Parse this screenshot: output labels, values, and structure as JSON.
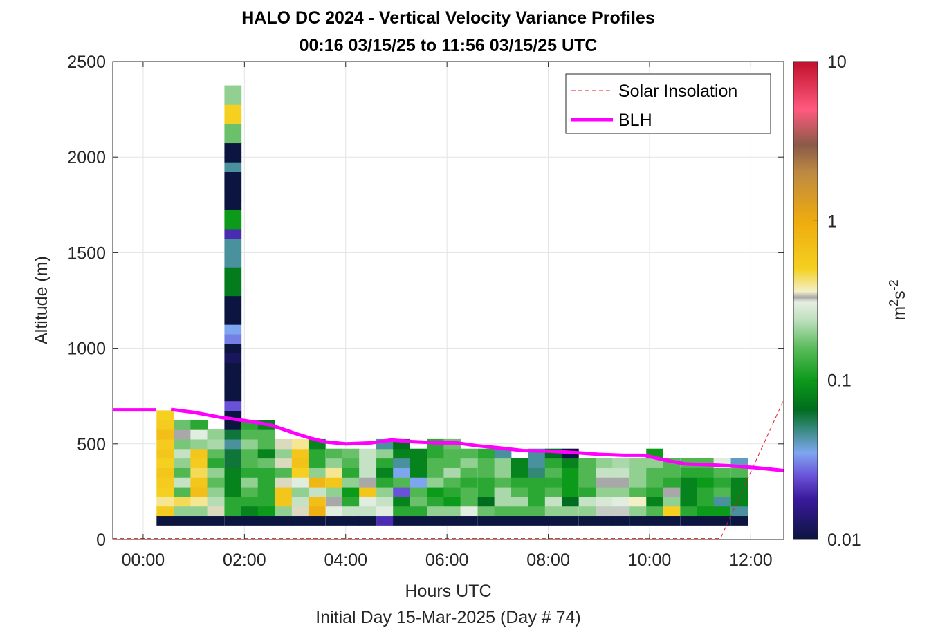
{
  "chart_data": {
    "type": "heatmap",
    "title": "HALO DC 2024 - Vertical Velocity Variance Profiles",
    "subtitle": "00:16 03/15/25 to 11:56 03/15/25  UTC",
    "xlabel": "Hours UTC",
    "x_sublabel": "Initial Day 15-Mar-2025 (Day # 74)",
    "ylabel": "Altitude (m)",
    "xlim": [
      -0.6,
      12.65
    ],
    "ylim": [
      0,
      2500
    ],
    "x_ticks": [
      0,
      2,
      4,
      6,
      8,
      10,
      12
    ],
    "x_tick_labels": [
      "00:00",
      "02:00",
      "04:00",
      "06:00",
      "08:00",
      "10:00",
      "12:00"
    ],
    "y_ticks": [
      0,
      500,
      1000,
      1500,
      2000,
      2500
    ],
    "y_tick_labels": [
      "0",
      "500",
      "1000",
      "1500",
      "2000",
      "2500"
    ],
    "grid": true,
    "legend_position": "top-right",
    "colorbar": {
      "label_base": "m",
      "label_exp1": "2",
      "label_mid": "s",
      "label_exp2": "-2",
      "scale": "log",
      "range": [
        0.01,
        10
      ],
      "tick_values": [
        0.01,
        0.1,
        1,
        10
      ],
      "tick_labels": [
        "0.01",
        "0.1",
        "1",
        "10"
      ],
      "stops": [
        {
          "v": 0.01,
          "c": "#0c1440"
        },
        {
          "v": 0.018,
          "c": "#3a1a9c"
        },
        {
          "v": 0.025,
          "c": "#6a52d8"
        },
        {
          "v": 0.035,
          "c": "#7ea6f0"
        },
        {
          "v": 0.048,
          "c": "#3c8c86"
        },
        {
          "v": 0.065,
          "c": "#006d1e"
        },
        {
          "v": 0.1,
          "c": "#0c9a1a"
        },
        {
          "v": 0.16,
          "c": "#5cbc5c"
        },
        {
          "v": 0.24,
          "c": "#bfe0bf"
        },
        {
          "v": 0.31,
          "c": "#e6efe2"
        },
        {
          "v": 0.33,
          "c": "#a8a8a8"
        },
        {
          "v": 0.36,
          "c": "#f3f0c8"
        },
        {
          "v": 0.5,
          "c": "#f5d020"
        },
        {
          "v": 1.0,
          "c": "#eeab0e"
        },
        {
          "v": 2.0,
          "c": "#be8a42"
        },
        {
          "v": 3.0,
          "c": "#8a5a48"
        },
        {
          "v": 5.0,
          "c": "#ff5a7e"
        },
        {
          "v": 10.0,
          "c": "#c0102a"
        }
      ]
    },
    "series": [
      {
        "name": "Solar Insolation",
        "style": "dashed",
        "color": "#e41a1c",
        "x": [
          -0.6,
          11.4,
          12.65
        ],
        "y": [
          5,
          5,
          730
        ]
      },
      {
        "name": "BLH",
        "style": "solid",
        "color": "#ff00ff",
        "x": [
          -0.6,
          0.25,
          0.55,
          1.0,
          1.5,
          2.0,
          2.5,
          3.0,
          3.3,
          3.6,
          4.0,
          4.5,
          4.9,
          5.3,
          5.8,
          6.2,
          6.6,
          7.0,
          7.5,
          8.0,
          8.5,
          9.0,
          9.5,
          9.9,
          10.3,
          10.7,
          11.2,
          11.6,
          12.1,
          12.65
        ],
        "y": [
          678,
          678,
          680,
          665,
          640,
          622,
          600,
          555,
          530,
          510,
          500,
          505,
          520,
          512,
          505,
          505,
          490,
          480,
          465,
          462,
          455,
          445,
          440,
          440,
          415,
          395,
          390,
          385,
          375,
          360
        ]
      },
      {
        "name": "Vertical velocity variance",
        "cell_width_h": 0.33,
        "cell_height_m": 50,
        "columns": [
          {
            "x": 0.43,
            "y0": 100,
            "v": [
              0.01,
              0.55,
              0.4,
              0.5,
              0.55,
              0.6,
              0.5,
              0.6,
              0.55,
              0.7,
              0.55,
              0.5
            ]
          },
          {
            "x": 0.77,
            "y0": 100,
            "v": [
              0.01,
              0.2,
              0.45,
              0.15,
              0.25,
              0.15,
              0.2,
              0.25,
              0.18,
              0.33,
              0.17
            ]
          },
          {
            "x": 1.1,
            "y0": 100,
            "v": [
              0.01,
              0.2,
              0.4,
              0.7,
              0.6,
              0.45,
              0.55,
              0.6,
              0.2,
              0.3,
              0.12
            ]
          },
          {
            "x": 1.43,
            "y0": 100,
            "v": [
              0.01,
              0.35,
              0.23,
              0.2,
              0.16,
              0.2,
              0.12,
              0.16,
              0.22,
              0.2
            ]
          },
          {
            "x": 1.77,
            "y0": 100,
            "v": [
              0.01,
              0.12,
              0.12,
              0.08,
              0.08,
              0.08,
              0.06,
              0.06,
              0.045,
              0.06,
              0.01,
              0.01,
              0.025,
              0.01,
              0.01,
              0.01,
              0.01,
              0.012,
              0.01,
              0.03,
              0.035,
              0.01,
              0.01,
              0.01,
              0.075,
              0.075,
              0.075,
              0.045,
              0.045,
              0.045,
              0.02,
              0.1,
              0.1,
              0.01,
              0.01,
              0.01,
              0.01,
              0.045,
              0.01,
              0.01,
              0.17,
              0.17,
              0.5,
              0.5,
              0.2,
              0.2
            ]
          },
          {
            "x": 2.1,
            "y0": 100,
            "v": [
              0.01,
              0.08,
              0.12,
              0.15,
              0.2,
              0.12,
              0.15,
              0.15,
              0.2,
              0.15,
              0.12
            ]
          },
          {
            "x": 2.43,
            "y0": 100,
            "v": [
              0.01,
              0.1,
              0.12,
              0.12,
              0.12,
              0.12,
              0.17,
              0.08,
              0.15,
              0.15,
              0.08
            ]
          },
          {
            "x": 2.77,
            "y0": 100,
            "v": [
              0.01,
              0.2,
              0.6,
              0.6,
              0.35,
              0.15,
              0.35,
              0.2,
              0.35
            ]
          },
          {
            "x": 3.1,
            "y0": 100,
            "v": [
              0.01,
              0.35,
              0.25,
              0.2,
              0.3,
              0.5,
              0.65,
              0.6,
              0.4
            ]
          },
          {
            "x": 3.43,
            "y0": 100,
            "v": [
              0.01,
              0.9,
              0.7,
              0.25,
              0.8,
              0.2,
              0.12,
              0.12,
              0.08
            ]
          },
          {
            "x": 3.77,
            "y0": 100,
            "v": [
              0.01,
              0.3,
              0.33,
              0.2,
              0.6,
              0.4,
              0.2,
              0.15
            ]
          },
          {
            "x": 4.1,
            "y0": 100,
            "v": [
              0.01,
              0.25,
              0.12,
              0.1,
              0.2,
              0.12,
              0.15,
              0.17
            ]
          },
          {
            "x": 4.43,
            "y0": 100,
            "v": [
              0.01,
              0.25,
              0.3,
              0.6,
              0.33,
              0.25,
              0.25,
              0.25
            ]
          },
          {
            "x": 4.77,
            "y0": 100,
            "v": [
              0.02,
              0.3,
              0.25,
              0.2,
              0.12,
              0.08,
              0.12,
              0.2,
              0.045
            ]
          },
          {
            "x": 5.1,
            "y0": 100,
            "v": [
              0.01,
              0.12,
              0.08,
              0.025,
              0.15,
              0.035,
              0.045,
              0.08,
              0.065
            ]
          },
          {
            "x": 5.43,
            "y0": 100,
            "v": [
              0.01,
              0.12,
              0.17,
              0.15,
              0.035,
              0.08,
              0.08,
              0.08
            ]
          },
          {
            "x": 5.77,
            "y0": 100,
            "v": [
              0.01,
              0.2,
              0.12,
              0.1,
              0.2,
              0.15,
              0.15,
              0.12,
              0.12
            ]
          },
          {
            "x": 6.1,
            "y0": 100,
            "v": [
              0.01,
              0.2,
              0.1,
              0.12,
              0.15,
              0.22,
              0.15,
              0.15,
              0.17
            ]
          },
          {
            "x": 6.43,
            "y0": 100,
            "v": [
              0.01,
              0.3,
              0.15,
              0.15,
              0.12,
              0.15,
              0.2,
              0.15
            ]
          },
          {
            "x": 6.77,
            "y0": 100,
            "v": [
              0.01,
              0.17,
              0.065,
              0.12,
              0.12,
              0.15,
              0.15,
              0.12
            ]
          },
          {
            "x": 7.1,
            "y0": 100,
            "v": [
              0.01,
              0.15,
              0.22,
              0.22,
              0.15,
              0.2,
              0.2,
              0.045
            ]
          },
          {
            "x": 7.43,
            "y0": 100,
            "v": [
              0.01,
              0.15,
              0.22,
              0.15,
              0.12,
              0.08,
              0.08
            ]
          },
          {
            "x": 7.77,
            "y0": 100,
            "v": [
              0.01,
              0.15,
              0.12,
              0.12,
              0.12,
              0.05,
              0.045,
              0.045
            ]
          },
          {
            "x": 8.1,
            "y0": 100,
            "v": [
              0.01,
              0.2,
              0.25,
              0.15,
              0.12,
              0.15,
              0.12,
              0.065
            ]
          },
          {
            "x": 8.43,
            "y0": 100,
            "v": [
              0.01,
              0.2,
              0.065,
              0.1,
              0.1,
              0.1,
              0.08,
              0.01
            ]
          },
          {
            "x": 8.77,
            "y0": 100,
            "v": [
              0.01,
              0.2,
              0.25,
              0.12,
              0.15,
              0.15,
              0.15
            ]
          },
          {
            "x": 9.1,
            "y0": 100,
            "v": [
              0.01,
              0.32,
              0.28,
              0.2,
              0.33,
              0.25,
              0.2
            ]
          },
          {
            "x": 9.43,
            "y0": 100,
            "v": [
              0.01,
              0.32,
              0.3,
              0.2,
              0.33,
              0.25,
              0.22
            ]
          },
          {
            "x": 9.77,
            "y0": 100,
            "v": [
              0.01,
              0.2,
              0.36,
              0.15,
              0.2,
              0.2,
              0.2
            ]
          },
          {
            "x": 10.1,
            "y0": 100,
            "v": [
              0.01,
              0.15,
              0.08,
              0.12,
              0.15,
              0.15,
              0.2,
              0.1
            ]
          },
          {
            "x": 10.43,
            "y0": 100,
            "v": [
              0.01,
              0.5,
              0.2,
              0.33,
              0.12,
              0.15,
              0.15
            ]
          },
          {
            "x": 10.77,
            "y0": 100,
            "v": [
              0.01,
              0.12,
              0.08,
              0.08,
              0.08,
              0.12,
              0.15
            ]
          },
          {
            "x": 11.1,
            "y0": 100,
            "v": [
              0.01,
              0.1,
              0.12,
              0.12,
              0.1,
              0.12,
              0.15
            ]
          },
          {
            "x": 11.43,
            "y0": 100,
            "v": [
              0.01,
              0.1,
              0.045,
              0.15,
              0.12,
              0.15,
              0.3
            ]
          },
          {
            "x": 11.77,
            "y0": 100,
            "v": [
              0.01,
              0.045,
              0.08,
              0.08,
              0.08,
              0.15,
              0.04
            ]
          }
        ]
      }
    ]
  }
}
